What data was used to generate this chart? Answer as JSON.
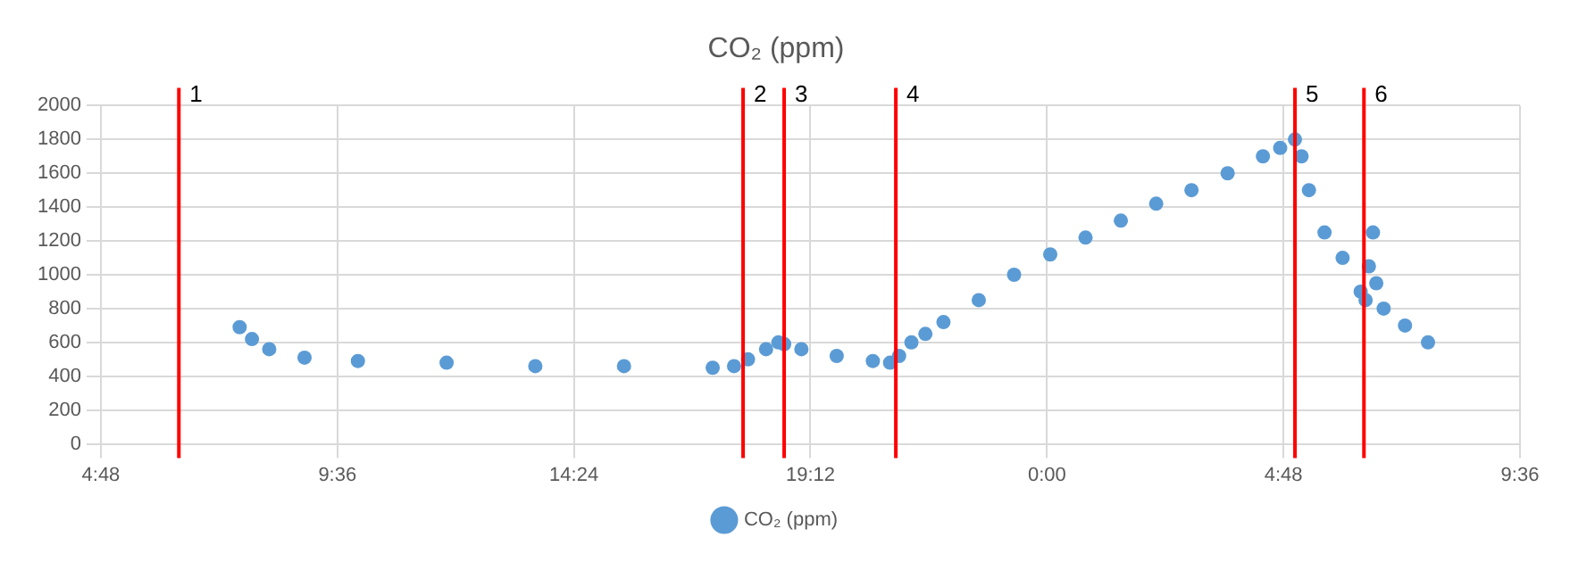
{
  "chart_data": {
    "type": "scatter",
    "title": "CO₂ (ppm)",
    "xlim": [
      "--01-01T04:48",
      "--01-02T09:36"
    ],
    "xticks": [
      {
        "value": "--01-01T04:48",
        "label": "4:48"
      },
      {
        "value": "--01-01T09:36",
        "label": "9:36"
      },
      {
        "value": "--01-01T14:24",
        "label": "14:24"
      },
      {
        "value": "--01-01T19:12",
        "label": "19:12"
      },
      {
        "value": "--01-02T00:00",
        "label": "0:00"
      },
      {
        "value": "--01-02T04:48",
        "label": "4:48"
      },
      {
        "value": "--01-02T09:36",
        "label": "9:36"
      }
    ],
    "ylim": [
      0,
      2000
    ],
    "yticks": [
      0,
      200,
      400,
      600,
      800,
      1000,
      1200,
      1400,
      1600,
      1800,
      2000
    ],
    "grid": true,
    "legend": "bottom",
    "marker": "circle",
    "series": [
      {
        "name": "CO₂ (ppm)",
        "color": "#5b9bd5",
        "x": [
          "--01-01T07:37",
          "--01-01T07:52",
          "--01-01T08:13",
          "--01-01T08:56",
          "--01-01T10:01",
          "--01-01T11:49",
          "--01-01T13:37",
          "--01-01T15:25",
          "--01-01T17:13",
          "--01-01T17:39",
          "--01-01T17:56",
          "--01-01T18:18",
          "--01-01T18:33",
          "--01-01T18:40",
          "--01-01T19:01",
          "--01-01T19:44",
          "--01-01T20:28",
          "--01-01T20:49",
          "--01-01T21:00",
          "--01-01T21:15",
          "--01-01T21:32",
          "--01-01T21:54",
          "--01-01T22:37",
          "--01-01T23:20",
          "--01-02T00:04",
          "--01-02T00:47",
          "--01-02T01:30",
          "--01-02T02:13",
          "--01-02T02:56",
          "--01-02T03:40",
          "--01-02T04:23",
          "--01-02T04:44",
          "--01-02T05:02",
          "--01-02T05:10",
          "--01-02T05:19",
          "--01-02T05:38",
          "--01-02T06:00",
          "--01-02T06:22",
          "--01-02T06:28",
          "--01-02T06:32",
          "--01-02T06:37",
          "--01-02T06:41",
          "--01-02T06:50",
          "--01-02T07:16",
          "--01-02T07:44"
        ],
        "values": [
          690,
          620,
          560,
          510,
          490,
          480,
          460,
          460,
          450,
          460,
          500,
          560,
          600,
          590,
          560,
          520,
          490,
          480,
          520,
          600,
          650,
          720,
          850,
          1000,
          1120,
          1220,
          1320,
          1420,
          1500,
          1600,
          1700,
          1750,
          1800,
          1700,
          1500,
          1250,
          1100,
          900,
          850,
          1050,
          1250,
          950,
          800,
          700,
          600
        ]
      }
    ],
    "ref_lines": [
      {
        "axis": "x",
        "value": "--01-01T06:23",
        "color": "#ff0000"
      },
      {
        "axis": "x",
        "value": "--01-01T17:50",
        "color": "#ff0000"
      },
      {
        "axis": "x",
        "value": "--01-01T18:40",
        "color": "#ff0000"
      },
      {
        "axis": "x",
        "value": "--01-01T20:56",
        "color": "#ff0000"
      },
      {
        "axis": "x",
        "value": "--01-02T05:02",
        "color": "#ff0000"
      },
      {
        "axis": "x",
        "value": "--01-02T06:26",
        "color": "#ff0000"
      }
    ],
    "annotations": [
      {
        "text": "1",
        "x": "--01-01T06:23"
      },
      {
        "text": "2",
        "x": "--01-01T17:50"
      },
      {
        "text": "3",
        "x": "--01-01T18:40"
      },
      {
        "text": "4",
        "x": "--01-01T20:56"
      },
      {
        "text": "5",
        "x": "--01-02T05:02"
      },
      {
        "text": "6",
        "x": "--01-02T06:26"
      }
    ]
  }
}
